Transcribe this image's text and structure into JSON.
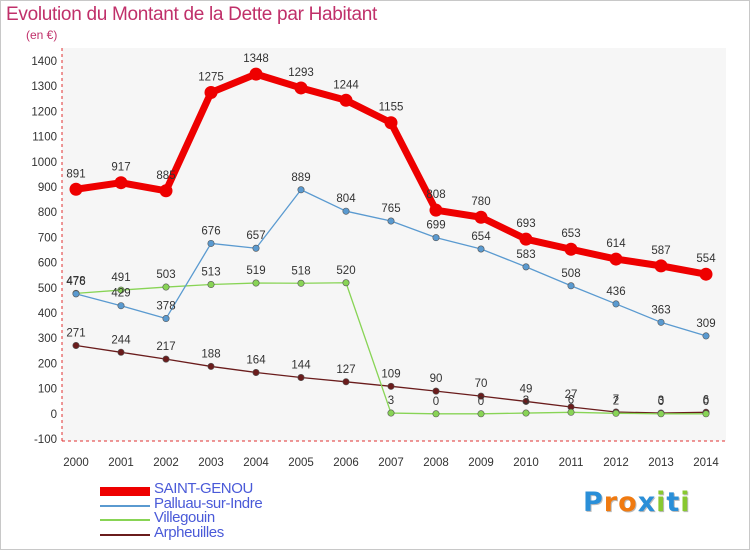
{
  "chart_data": {
    "type": "line",
    "title": "Evolution du Montant de la Dette par Habitant",
    "subtitle": "(en €)",
    "xlabel": "",
    "ylabel": "",
    "categories": [
      "2000",
      "2001",
      "2002",
      "2003",
      "2004",
      "2005",
      "2006",
      "2007",
      "2008",
      "2009",
      "2010",
      "2011",
      "2012",
      "2013",
      "2014"
    ],
    "ylim": [
      -100,
      1400
    ],
    "yticks": [
      -100,
      0,
      100,
      200,
      300,
      400,
      500,
      600,
      700,
      800,
      900,
      1000,
      1100,
      1200,
      1300,
      1400
    ],
    "grid": false,
    "legend_position": "bottom-left",
    "series": [
      {
        "name": "SAINT-GENOU",
        "color": "#ee0000",
        "values": [
          891,
          917,
          885,
          1275,
          1348,
          1293,
          1244,
          1155,
          808,
          780,
          693,
          653,
          614,
          587,
          554
        ]
      },
      {
        "name": "Palluau-sur-Indre",
        "color": "#5a9ad0",
        "values": [
          476,
          429,
          378,
          676,
          657,
          889,
          804,
          765,
          699,
          654,
          583,
          508,
          436,
          363,
          309
        ]
      },
      {
        "name": "Villegouin",
        "color": "#88d455",
        "values": [
          478,
          491,
          503,
          513,
          519,
          518,
          520,
          3,
          0,
          0,
          3,
          6,
          2,
          0,
          0
        ]
      },
      {
        "name": "Arpheuilles",
        "color": "#6a1c1c",
        "values": [
          271,
          244,
          217,
          188,
          164,
          144,
          127,
          109,
          90,
          70,
          49,
          27,
          7,
          3,
          6
        ]
      }
    ]
  },
  "logo": {
    "text": "Proxiti",
    "colors": [
      "#2a8fd8",
      "#f07a10",
      "#f07a10",
      "#2a8fd8",
      "#88c830",
      "#2a8fd8",
      "#88c830"
    ]
  }
}
